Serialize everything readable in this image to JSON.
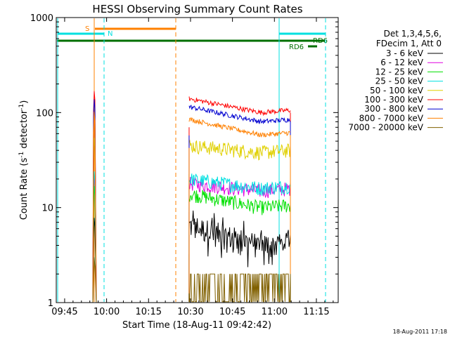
{
  "chart_data": {
    "type": "line",
    "title": "HESSI Observing Summary Count Rates",
    "xlabel": "Start Time (18-Aug-11 09:42:42)",
    "ylabel_main": "Count Rate (s",
    "ylabel_sup1": "-1",
    "ylabel_mid": " detector",
    "ylabel_sup2": "-1",
    "ylabel_end": ")",
    "y_scale": "log",
    "ylim": [
      1,
      1000
    ],
    "xlim_minutes": [
      9.7,
      11.38
    ],
    "x_ticks": [
      {
        "label": "09:45",
        "t": 9.75
      },
      {
        "label": "10:00",
        "t": 10.0
      },
      {
        "label": "10:15",
        "t": 10.25
      },
      {
        "label": "10:30",
        "t": 10.5
      },
      {
        "label": "10:45",
        "t": 10.75
      },
      {
        "label": "11:00",
        "t": 11.0
      },
      {
        "label": "11:15",
        "t": 11.25
      }
    ],
    "y_ticks": [
      {
        "label": "1",
        "v": 1
      },
      {
        "label": "10",
        "v": 10
      },
      {
        "label": "100",
        "v": 100
      },
      {
        "label": "1000",
        "v": 1000
      }
    ],
    "legend_header": [
      "Det 1,3,4,5,6,",
      "FDecim 1, Att 0"
    ],
    "legend_placement": "right",
    "series": [
      {
        "name": "3 - 6 keV",
        "color": "#000000",
        "level_start": 6.5,
        "level_end": 4.0
      },
      {
        "name": "6 - 12 keV",
        "color": "#e000e0",
        "level_start": 18,
        "level_end": 15
      },
      {
        "name": "12 - 25 keV",
        "color": "#00e000",
        "level_start": 14,
        "level_end": 10
      },
      {
        "name": "25 - 50 keV",
        "color": "#00e0e0",
        "level_start": 20,
        "level_end": 16
      },
      {
        "name": "50 - 100 keV",
        "color": "#e0d000",
        "level_start": 45,
        "level_end": 38
      },
      {
        "name": "100 - 300 keV",
        "color": "#ff0000",
        "level_start": 140,
        "level_end": 100
      },
      {
        "name": "300 - 800 keV",
        "color": "#0000d0",
        "level_start": 115,
        "level_end": 80
      },
      {
        "name": "800 - 7000 keV",
        "color": "#ff8000",
        "level_start": 85,
        "level_end": 58
      },
      {
        "name": "7000 - 20000 keV",
        "color": "#806000",
        "level_start": 2.5,
        "level_end": 2.0
      }
    ],
    "flags": {
      "saa_label": "S",
      "night_label": "N",
      "rd_label_right": "RD6",
      "rd_label_lower": "RD6"
    },
    "timestamp": "18-Aug-2011 17:18"
  }
}
